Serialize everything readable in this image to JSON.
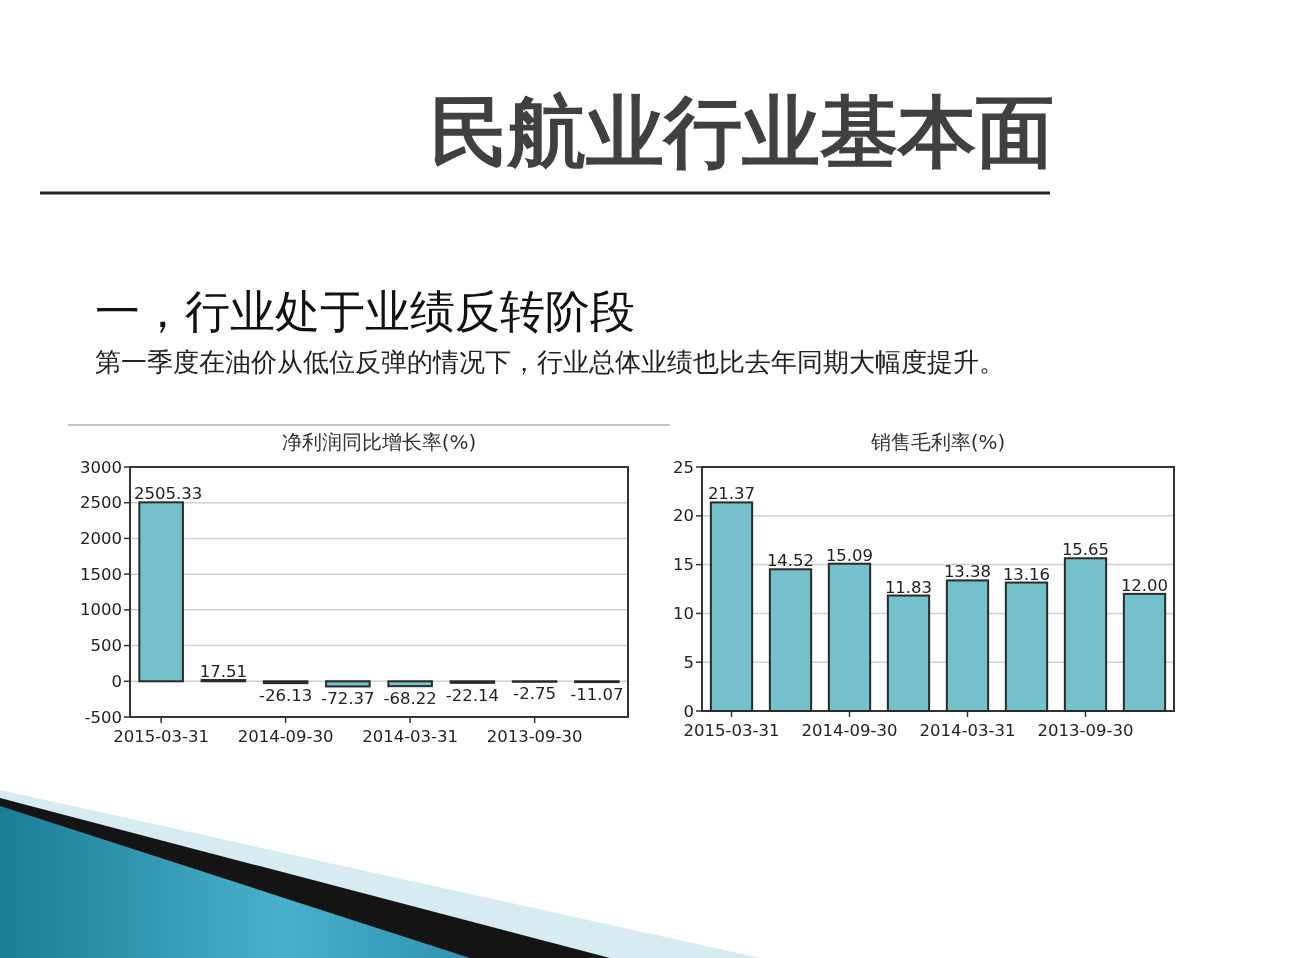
{
  "chart_data": [
    {
      "type": "other",
      "title": "民航业行业基本面",
      "subtitle": "一，行业处于业绩反转阶段",
      "annotations": [
        "第一季度在油价从低位反弹的情况下，行业总体业绩也比去年同期大幅度提升。"
      ]
    },
    {
      "type": "bar",
      "title": "净利润同比增长率(%)",
      "categories": [
        "2015-03-31",
        null,
        "2014-09-30",
        null,
        "2014-03-31",
        null,
        "2013-09-30",
        null
      ],
      "values": [
        2505.33,
        17.51,
        -26.13,
        -72.37,
        -68.22,
        -22.14,
        -2.75,
        -11.07
      ],
      "value_labels": [
        "2505.33",
        "17.51",
        "-26.13",
        "-72.37",
        "-68.22",
        "-22.14",
        "-2.75",
        "-11.07"
      ],
      "color": "#74c1cc",
      "ylim": [
        -500,
        3000
      ],
      "yticks": [
        -500,
        0,
        500,
        1000,
        1500,
        2000,
        2500,
        3000
      ],
      "grid": "y"
    },
    {
      "type": "bar",
      "title": "销售毛利率(%)",
      "categories": [
        "2015-03-31",
        null,
        "2014-09-30",
        null,
        "2014-03-31",
        null,
        "2013-09-30",
        null
      ],
      "values": [
        21.37,
        14.52,
        15.09,
        11.83,
        13.38,
        13.16,
        15.65,
        12.0
      ],
      "value_labels": [
        "21.37",
        "14.52",
        "15.09",
        "11.83",
        "13.38",
        "13.16",
        "15.65",
        "12.00"
      ],
      "color": "#74c1cc",
      "ylim": [
        0,
        25
      ],
      "yticks": [
        0,
        5,
        10,
        15,
        20,
        25
      ],
      "grid": "y"
    }
  ]
}
